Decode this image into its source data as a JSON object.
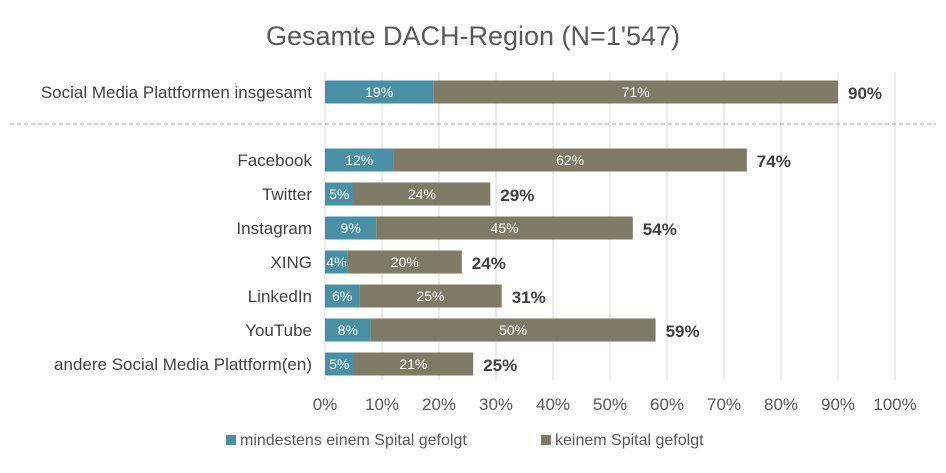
{
  "chart_data": {
    "type": "bar",
    "orientation": "horizontal",
    "stacked": true,
    "title": "Gesamte DACH-Region (N=1'547)",
    "categories": [
      "Social Media Plattformen insgesamt",
      "Facebook",
      "Twitter",
      "Instagram",
      "XING",
      "LinkedIn",
      "YouTube",
      "andere Social Media Plattform(en)"
    ],
    "series": [
      {
        "name": "mindestens einem Spital gefolgt",
        "color": "#4a90a4",
        "values": [
          19,
          12,
          5,
          9,
          4,
          6,
          8,
          5
        ],
        "labels": [
          "19%",
          "12%",
          "5%",
          "9%",
          "4%",
          "6%",
          "8%",
          "5%"
        ]
      },
      {
        "name": "keinem Spital gefolgt",
        "color": "#7f7a66",
        "values": [
          71,
          62,
          24,
          45,
          20,
          25,
          50,
          21
        ],
        "labels": [
          "71%",
          "62%",
          "24%",
          "45%",
          "20%",
          "25%",
          "50%",
          "21%"
        ]
      }
    ],
    "totals": [
      90,
      74,
      29,
      54,
      24,
      31,
      59,
      25
    ],
    "total_labels": [
      "90%",
      "74%",
      "29%",
      "54%",
      "24%",
      "31%",
      "59%",
      "25%"
    ],
    "xlim": [
      0,
      100
    ],
    "x_ticks": [
      "0%",
      "10%",
      "20%",
      "30%",
      "40%",
      "50%",
      "60%",
      "70%",
      "80%",
      "90%",
      "100%"
    ],
    "grid": "vertical",
    "legend_position": "bottom",
    "separator_after_first": true
  }
}
